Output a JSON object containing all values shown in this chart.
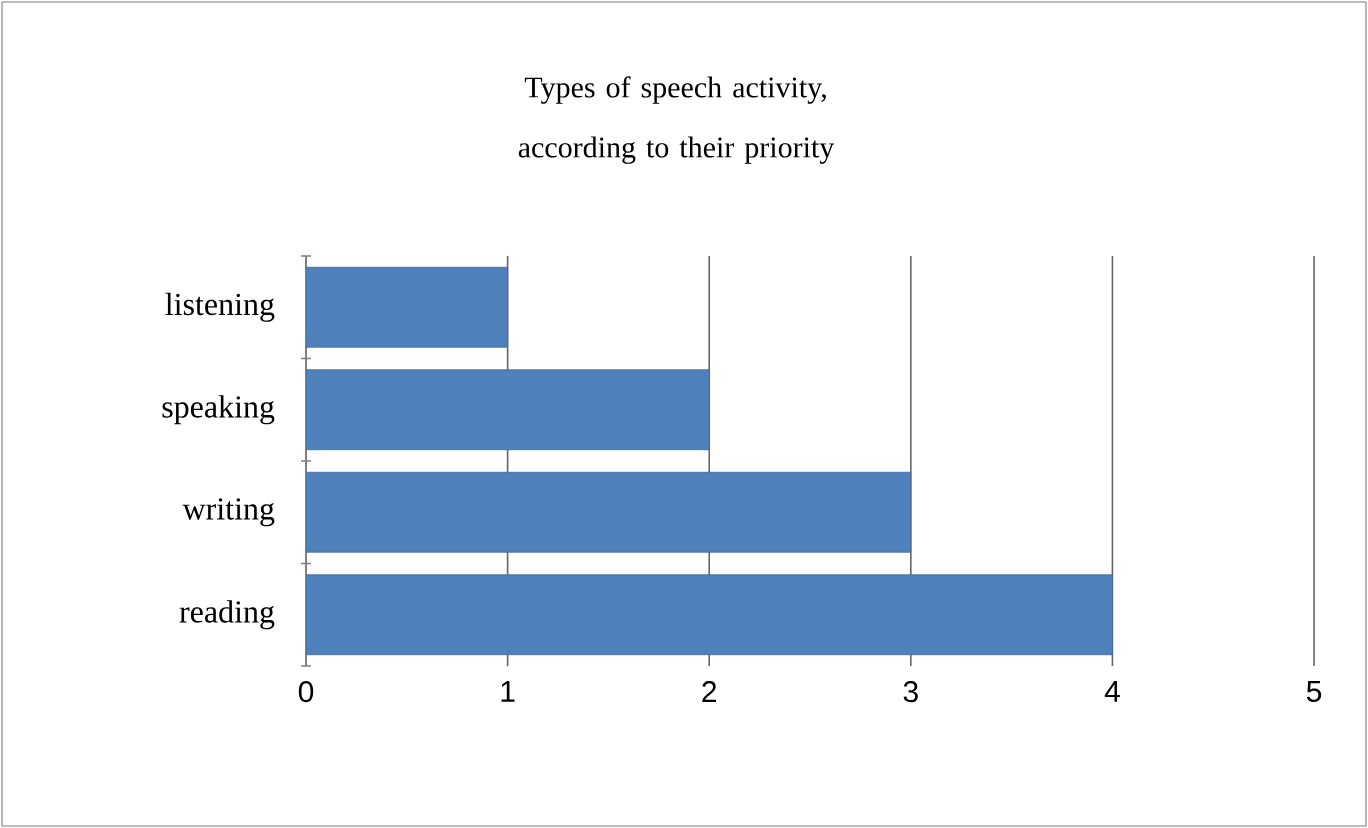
{
  "chart_data": {
    "type": "bar",
    "orientation": "horizontal",
    "title": "Types of speech activity, according to their priority",
    "categories": [
      "listening",
      "speaking",
      "writing",
      "reading"
    ],
    "values": [
      1,
      2,
      3,
      4
    ],
    "color": "#4f81bd",
    "xlim": [
      0,
      5
    ],
    "xticks": [
      0,
      1,
      2,
      3,
      4,
      5
    ],
    "grid": "x"
  }
}
